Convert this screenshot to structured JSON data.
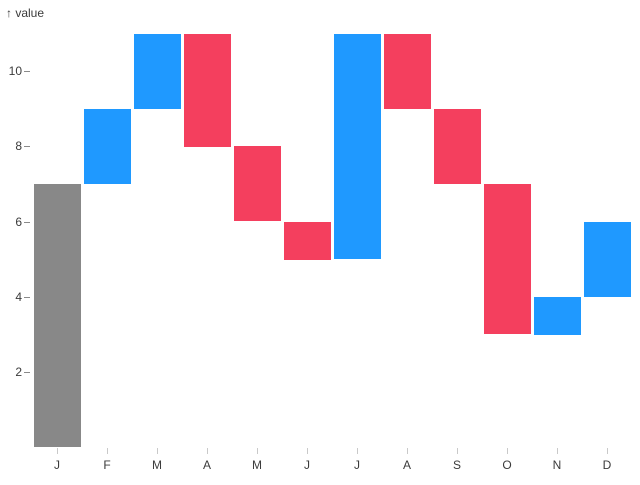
{
  "chart_data": {
    "type": "bar",
    "subtype": "waterfall",
    "title": "",
    "xlabel": "",
    "ylabel": "↑ value",
    "categories": [
      "J",
      "F",
      "M",
      "A",
      "M",
      "J",
      "J",
      "A",
      "S",
      "O",
      "N",
      "D"
    ],
    "series": [
      {
        "month": "J",
        "start": 0,
        "end": 7,
        "kind": "total"
      },
      {
        "month": "F",
        "start": 7,
        "end": 9,
        "kind": "increase"
      },
      {
        "month": "M",
        "start": 9,
        "end": 11,
        "kind": "increase"
      },
      {
        "month": "A",
        "start": 11,
        "end": 8,
        "kind": "decrease"
      },
      {
        "month": "M",
        "start": 8,
        "end": 6,
        "kind": "decrease"
      },
      {
        "month": "J",
        "start": 6,
        "end": 5,
        "kind": "decrease"
      },
      {
        "month": "J",
        "start": 5,
        "end": 11,
        "kind": "increase"
      },
      {
        "month": "A",
        "start": 11,
        "end": 9,
        "kind": "decrease"
      },
      {
        "month": "S",
        "start": 9,
        "end": 7,
        "kind": "decrease"
      },
      {
        "month": "O",
        "start": 7,
        "end": 3,
        "kind": "decrease"
      },
      {
        "month": "N",
        "start": 3,
        "end": 4,
        "kind": "increase"
      },
      {
        "month": "D",
        "start": 4,
        "end": 6,
        "kind": "increase"
      }
    ],
    "yticks": [
      2,
      4,
      6,
      8,
      10
    ],
    "ylim": [
      0,
      11.1
    ],
    "grid": false,
    "legend": "none",
    "colors": {
      "increase": "#1f99ff",
      "decrease": "#f43f5e",
      "total": "#888888"
    }
  }
}
